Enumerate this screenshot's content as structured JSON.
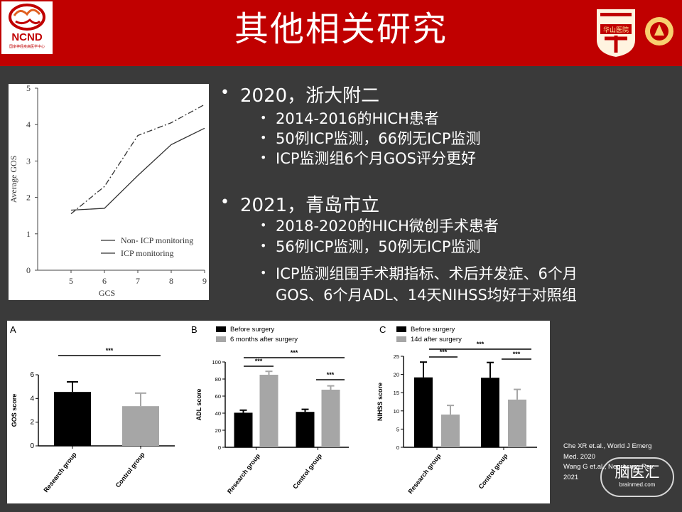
{
  "slide": {
    "title": "其他相关研究",
    "logo_left": {
      "text": "NCND",
      "subtext": "国家神经疾病医学中心"
    },
    "logo_right_1": {
      "icon": "university-crest-icon",
      "text": "华山医院"
    },
    "logo_right_2": {
      "icon": "university-seal-icon"
    }
  },
  "bullets": [
    {
      "text": "2020，浙大附二",
      "sub": [
        "2014-2016的HICH患者",
        "50例ICP监测，66例无ICP监测",
        "ICP监测组6个月GOS评分更好"
      ]
    },
    {
      "text": "2021，青岛市立",
      "sub": [
        "2018-2020的HICH微创手术患者",
        "56例ICP监测，50例无ICP监测",
        "ICP监测组围手术期指标、术后并发症、6个月",
        "GOS、6个月ADL、14天NIHSS均好于对照组"
      ]
    }
  ],
  "references": [
    "Che XR et.al., World J Emerg",
    "Med. 2020",
    "Wang G et.al., Neurosurg Rev.",
    "2021"
  ],
  "watermark": {
    "text": "脑医汇",
    "url": "brainmed.com"
  },
  "chart_data": [
    {
      "type": "line",
      "xlabel": "GCS",
      "ylabel": "Average GOS",
      "x": [
        5,
        6,
        7,
        8,
        9
      ],
      "xlim": [
        4,
        9
      ],
      "ylim": [
        0,
        5
      ],
      "yticks": [
        0,
        1,
        2,
        3,
        4,
        5
      ],
      "series": [
        {
          "name": "Non- ICP monitoring",
          "style": "solid",
          "values": [
            1.65,
            1.7,
            2.6,
            3.45,
            3.9
          ]
        },
        {
          "name": "ICP monitoring",
          "style": "dash-dot",
          "values": [
            1.55,
            2.3,
            3.7,
            4.05,
            4.55
          ]
        }
      ]
    },
    {
      "type": "bar",
      "panel": "A",
      "ylabel": "GOS score",
      "ylim": [
        0,
        6
      ],
      "yticks": [
        0,
        2,
        4,
        6
      ],
      "categories": [
        "Research group",
        "Control group"
      ],
      "values": [
        4.55,
        3.35
      ],
      "errors": [
        0.85,
        1.1
      ],
      "colors": [
        "#000000",
        "#a6a6a6"
      ],
      "significance": "***"
    },
    {
      "type": "bar",
      "panel": "B",
      "ylabel": "ADL score",
      "ylim": [
        0,
        100
      ],
      "yticks": [
        0,
        20,
        40,
        60,
        80,
        100
      ],
      "categories": [
        "Research group",
        "Control group"
      ],
      "series": [
        {
          "name": "Before surgery",
          "color": "#000000",
          "values": [
            40.5,
            41.5
          ],
          "errors": [
            3,
            3
          ]
        },
        {
          "name": "6 months after surgery",
          "color": "#a6a6a6",
          "values": [
            85,
            67.5
          ],
          "errors": [
            4,
            4.5
          ]
        }
      ],
      "significance": "***"
    },
    {
      "type": "bar",
      "panel": "C",
      "ylabel": "NIHSS score",
      "ylim": [
        0,
        25
      ],
      "yticks": [
        0,
        5,
        10,
        15,
        20,
        25
      ],
      "categories": [
        "Research group",
        "Control group"
      ],
      "series": [
        {
          "name": "Before surgery",
          "color": "#000000",
          "values": [
            19.2,
            19.1
          ],
          "errors": [
            4.2,
            4.2
          ]
        },
        {
          "name": "14d after surgery",
          "color": "#a6a6a6",
          "values": [
            9,
            13.1
          ],
          "errors": [
            2.5,
            2.8
          ]
        }
      ],
      "significance": "***"
    }
  ]
}
